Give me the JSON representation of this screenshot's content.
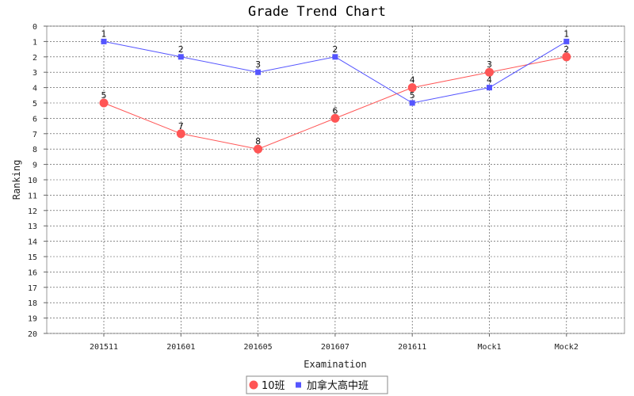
{
  "chart_data": {
    "type": "line",
    "title": "Grade Trend Chart",
    "xlabel": "Examination",
    "ylabel": "Ranking",
    "categories": [
      "201511",
      "201601",
      "201605",
      "201607",
      "201611",
      "Mock1",
      "Mock2"
    ],
    "ylim": [
      0,
      20
    ],
    "y_inverted": true,
    "y_ticks": [
      "0",
      "1",
      "2",
      "3",
      "4",
      "5",
      "6",
      "7",
      "8",
      "9",
      "10",
      "11",
      "12",
      "13",
      "14",
      "15",
      "16",
      "17",
      "18",
      "19",
      "20"
    ],
    "grid": true,
    "legend_position": "bottom",
    "series": [
      {
        "name": "10班",
        "values": [
          5,
          7,
          8,
          6,
          4,
          3,
          2
        ],
        "color": "#ff5555",
        "marker": "circle"
      },
      {
        "name": "加拿大高中班",
        "values": [
          1,
          2,
          3,
          2,
          5,
          4,
          1
        ],
        "color": "#5555ff",
        "marker": "square"
      }
    ]
  }
}
